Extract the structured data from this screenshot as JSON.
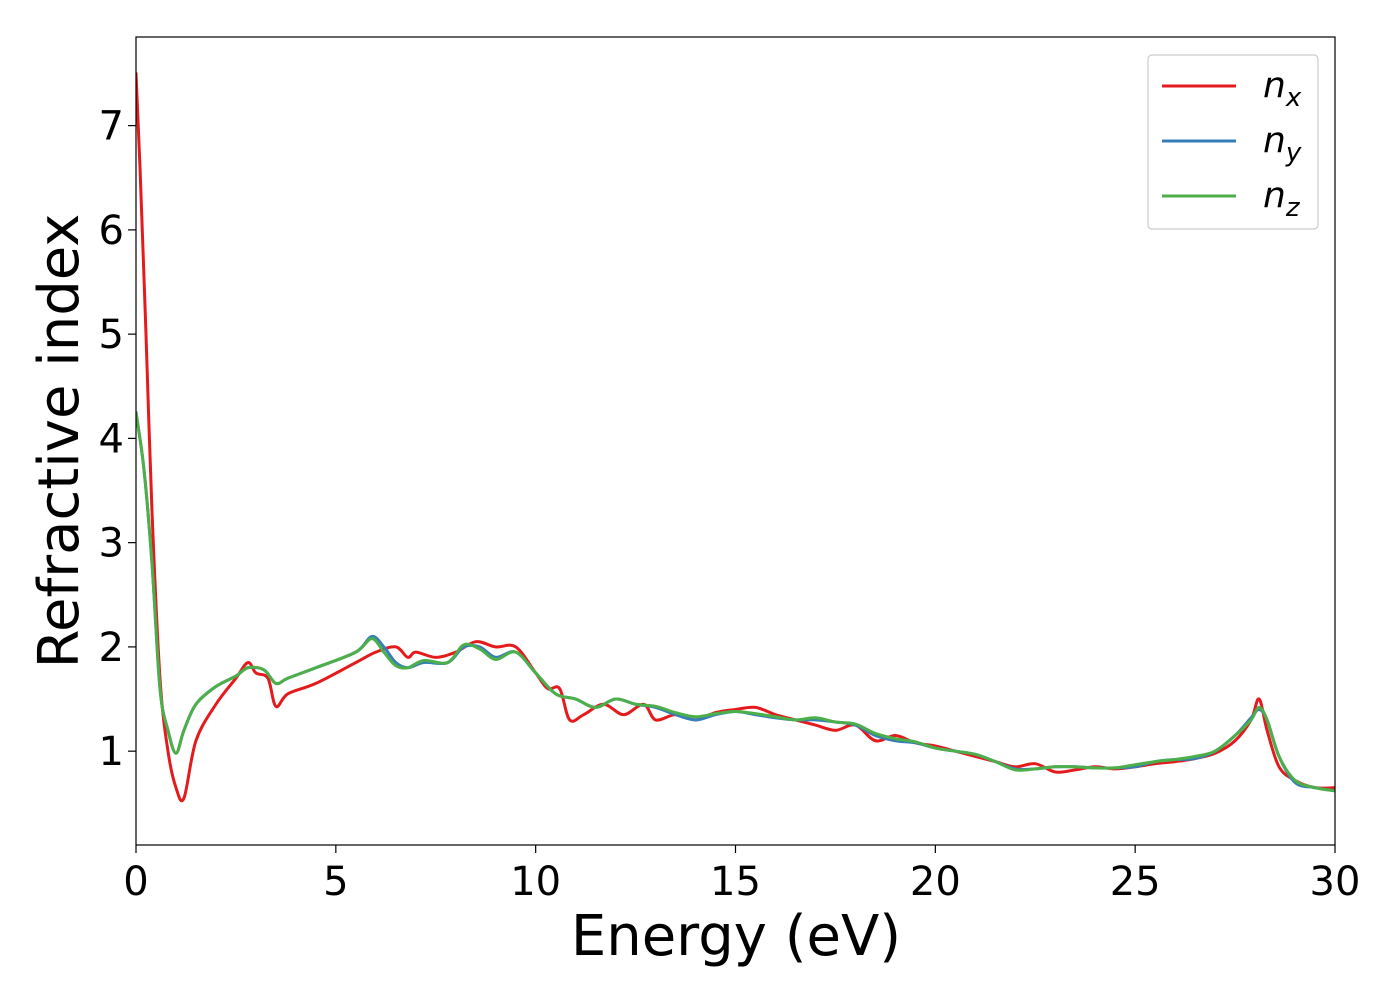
{
  "chart_data": {
    "type": "line",
    "title": "",
    "xlabel": "Energy (eV)",
    "ylabel": "Refractive index",
    "xlim": [
      0,
      30
    ],
    "ylim": [
      0.1,
      7.85
    ],
    "xticks": [
      0,
      5,
      10,
      15,
      20,
      25,
      30
    ],
    "yticks": [
      1,
      2,
      3,
      4,
      5,
      6,
      7
    ],
    "grid": false,
    "legend_position": "top-right",
    "series": [
      {
        "name": "n",
        "subscript": "x",
        "color": "#e41a1c",
        "x": [
          0,
          0.1,
          0.25,
          0.4,
          0.6,
          0.8,
          1.0,
          1.2,
          1.5,
          2.0,
          2.5,
          2.8,
          3.0,
          3.3,
          3.5,
          3.8,
          4.5,
          5.5,
          6.0,
          6.5,
          6.8,
          7.0,
          7.5,
          8.0,
          8.5,
          9.0,
          9.5,
          10.0,
          10.3,
          10.6,
          10.85,
          11.2,
          11.7,
          12.2,
          12.7,
          13.0,
          13.5,
          14.0,
          14.5,
          15.0,
          15.5,
          16.0,
          16.5,
          17.0,
          17.5,
          18.0,
          18.5,
          19.0,
          19.5,
          20.0,
          20.5,
          21.0,
          21.5,
          22.0,
          22.5,
          23.0,
          23.5,
          24.0,
          24.5,
          25.0,
          25.5,
          26.0,
          26.5,
          27.0,
          27.5,
          27.9,
          28.1,
          28.3,
          28.6,
          29.0,
          29.5,
          30.0
        ],
        "values": [
          7.5,
          6.6,
          5.0,
          3.3,
          1.7,
          1.0,
          0.65,
          0.55,
          1.1,
          1.45,
          1.7,
          1.85,
          1.75,
          1.7,
          1.43,
          1.55,
          1.65,
          1.85,
          1.95,
          2.0,
          1.9,
          1.95,
          1.9,
          1.95,
          2.05,
          2.0,
          2.0,
          1.75,
          1.6,
          1.6,
          1.3,
          1.35,
          1.45,
          1.35,
          1.45,
          1.3,
          1.35,
          1.3,
          1.37,
          1.4,
          1.42,
          1.35,
          1.3,
          1.25,
          1.2,
          1.25,
          1.1,
          1.15,
          1.08,
          1.05,
          1.0,
          0.95,
          0.9,
          0.85,
          0.88,
          0.8,
          0.82,
          0.85,
          0.83,
          0.85,
          0.88,
          0.9,
          0.93,
          0.98,
          1.1,
          1.3,
          1.5,
          1.2,
          0.85,
          0.72,
          0.65,
          0.65
        ]
      },
      {
        "name": "n",
        "subscript": "y",
        "color": "#377eb8",
        "x": [
          0,
          0.2,
          0.4,
          0.6,
          0.8,
          1.0,
          1.2,
          1.5,
          2.0,
          2.5,
          2.8,
          3.2,
          3.5,
          3.8,
          4.5,
          5.5,
          5.9,
          6.2,
          6.5,
          6.8,
          7.2,
          7.8,
          8.2,
          8.6,
          9.0,
          9.5,
          10.0,
          10.5,
          11.0,
          11.5,
          12.0,
          12.5,
          13.0,
          13.5,
          14.0,
          14.5,
          15.0,
          15.5,
          16.0,
          16.5,
          17.0,
          17.5,
          18.0,
          18.5,
          19.0,
          19.5,
          20.0,
          20.5,
          21.0,
          21.5,
          22.0,
          22.5,
          23.0,
          23.5,
          24.0,
          24.5,
          25.0,
          25.5,
          26.0,
          26.5,
          27.0,
          27.5,
          27.9,
          28.1,
          28.3,
          28.6,
          29.0,
          29.5,
          30.0
        ],
        "values": [
          4.25,
          3.7,
          2.8,
          1.6,
          1.2,
          0.98,
          1.2,
          1.45,
          1.62,
          1.72,
          1.8,
          1.78,
          1.65,
          1.7,
          1.8,
          1.95,
          2.1,
          2.0,
          1.85,
          1.8,
          1.85,
          1.85,
          2.0,
          2.0,
          1.9,
          1.95,
          1.75,
          1.55,
          1.5,
          1.42,
          1.5,
          1.45,
          1.42,
          1.35,
          1.3,
          1.35,
          1.38,
          1.35,
          1.32,
          1.3,
          1.3,
          1.28,
          1.25,
          1.15,
          1.1,
          1.08,
          1.03,
          1.0,
          0.97,
          0.9,
          0.83,
          0.83,
          0.85,
          0.85,
          0.84,
          0.84,
          0.85,
          0.9,
          0.92,
          0.93,
          1.0,
          1.15,
          1.32,
          1.4,
          1.3,
          0.95,
          0.7,
          0.65,
          0.62
        ]
      },
      {
        "name": "n",
        "subscript": "z",
        "color": "#4daf4a",
        "x": [
          0,
          0.2,
          0.4,
          0.6,
          0.8,
          1.0,
          1.2,
          1.5,
          2.0,
          2.5,
          2.8,
          3.2,
          3.5,
          3.8,
          4.5,
          5.5,
          5.9,
          6.2,
          6.5,
          6.8,
          7.2,
          7.8,
          8.2,
          8.6,
          9.0,
          9.5,
          10.0,
          10.5,
          11.0,
          11.5,
          12.0,
          12.5,
          13.0,
          13.5,
          14.0,
          14.5,
          15.0,
          15.5,
          16.0,
          16.5,
          17.0,
          17.5,
          18.0,
          18.5,
          19.0,
          19.5,
          20.0,
          20.5,
          21.0,
          21.5,
          22.0,
          22.5,
          23.0,
          23.5,
          24.0,
          24.5,
          25.0,
          25.5,
          26.0,
          26.5,
          27.0,
          27.5,
          27.9,
          28.1,
          28.3,
          28.6,
          29.0,
          29.5,
          30.0
        ],
        "values": [
          4.25,
          3.7,
          2.8,
          1.6,
          1.2,
          0.98,
          1.2,
          1.45,
          1.62,
          1.72,
          1.8,
          1.78,
          1.65,
          1.7,
          1.8,
          1.95,
          2.08,
          1.95,
          1.82,
          1.8,
          1.87,
          1.85,
          2.02,
          1.98,
          1.88,
          1.95,
          1.75,
          1.55,
          1.5,
          1.42,
          1.5,
          1.45,
          1.43,
          1.37,
          1.33,
          1.36,
          1.38,
          1.36,
          1.33,
          1.3,
          1.32,
          1.28,
          1.26,
          1.17,
          1.12,
          1.09,
          1.03,
          1.0,
          0.97,
          0.9,
          0.82,
          0.83,
          0.85,
          0.85,
          0.84,
          0.84,
          0.87,
          0.9,
          0.92,
          0.95,
          1.0,
          1.15,
          1.3,
          1.42,
          1.3,
          0.95,
          0.72,
          0.65,
          0.62
        ]
      }
    ]
  }
}
